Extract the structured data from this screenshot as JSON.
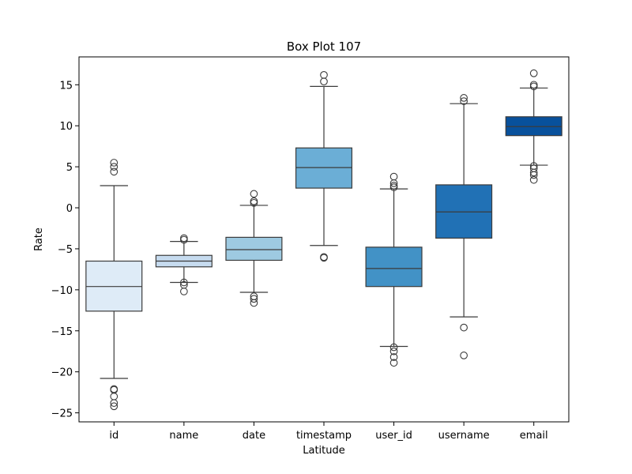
{
  "chart_data": {
    "type": "box",
    "title": "Box Plot 107",
    "xlabel": "Latitude",
    "ylabel": "Rate",
    "ylim": [
      -26.1,
      18.4
    ],
    "yticks": [
      -25,
      -20,
      -15,
      -10,
      -5,
      0,
      5,
      10,
      15
    ],
    "grid": false,
    "categories": [
      "id",
      "name",
      "date",
      "timestamp",
      "user_id",
      "username",
      "email"
    ],
    "boxes": [
      {
        "category": "id",
        "whisker_low": -20.8,
        "q1": -12.6,
        "median": -9.6,
        "q3": -6.5,
        "whisker_high": 2.7,
        "outliers": [
          5.5,
          5.0,
          4.4,
          -22.1,
          -22.2,
          -23.0,
          -23.8,
          -24.2
        ],
        "color": "#deebf7"
      },
      {
        "category": "name",
        "whisker_low": -9.1,
        "q1": -7.2,
        "median": -6.5,
        "q3": -5.8,
        "whisker_high": -4.1,
        "outliers": [
          -3.7,
          -3.9,
          -9.1,
          -9.4,
          -10.2
        ],
        "color": "#c6dbef"
      },
      {
        "category": "date",
        "whisker_low": -10.3,
        "q1": -6.4,
        "median": -5.1,
        "q3": -3.6,
        "whisker_high": 0.3,
        "outliers": [
          1.7,
          0.8,
          0.6,
          -10.8,
          -11.1,
          -11.6
        ],
        "color": "#9ecae1"
      },
      {
        "category": "timestamp",
        "whisker_low": -4.6,
        "q1": 2.4,
        "median": 4.9,
        "q3": 7.3,
        "whisker_high": 14.8,
        "outliers": [
          16.2,
          15.4,
          -6.0,
          -6.1
        ],
        "color": "#6baed6"
      },
      {
        "category": "user_id",
        "whisker_low": -16.9,
        "q1": -9.6,
        "median": -7.4,
        "q3": -4.8,
        "whisker_high": 2.3,
        "outliers": [
          3.8,
          3.0,
          2.7,
          2.5,
          -17.0,
          -17.5,
          -18.2,
          -18.9
        ],
        "color": "#4292c6"
      },
      {
        "category": "username",
        "whisker_low": -13.3,
        "q1": -3.7,
        "median": -0.5,
        "q3": 2.8,
        "whisker_high": 12.7,
        "outliers": [
          13.4,
          13.0,
          -14.6,
          -18.0
        ],
        "color": "#2171b5"
      },
      {
        "category": "email",
        "whisker_low": 5.2,
        "q1": 8.8,
        "median": 9.9,
        "q3": 11.1,
        "whisker_high": 14.6,
        "outliers": [
          16.4,
          15.0,
          14.8,
          5.1,
          4.8,
          4.3,
          4.0,
          3.4
        ],
        "color": "#08519c"
      }
    ]
  }
}
